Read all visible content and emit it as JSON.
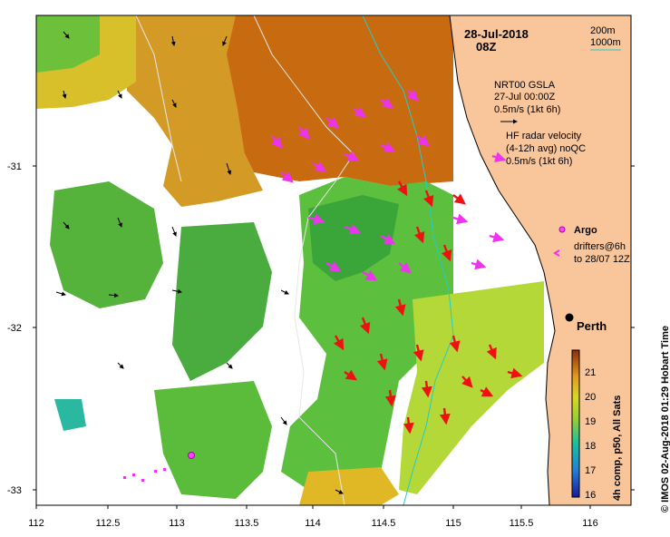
{
  "header": {
    "date": "28-Jul-2018",
    "time": "08Z"
  },
  "contour_legend": {
    "line1": "200m",
    "line2": "1000m"
  },
  "sla_legend": {
    "title": "NRT00 GSLA",
    "date": "27-Jul 00:00Z",
    "scale": "0.5m/s (1kt 6h)"
  },
  "radar_legend": {
    "title": "HF radar velocity",
    "avg": "(4-12h avg) noQC",
    "scale": "0.5m/s (1kt 6h)"
  },
  "argo_legend": {
    "label": "Argo"
  },
  "drifter_legend": {
    "line1": "drifters@6h",
    "line2": "to 28/07 12Z"
  },
  "city": {
    "name": "Perth"
  },
  "colorbar": {
    "ticks": [
      "21",
      "20",
      "19",
      "18",
      "17",
      "16"
    ],
    "label": "4h comp, p50, All Sats"
  },
  "credit": "© IMOS 02-Aug-2018 01:29 Hobart Time",
  "axes": {
    "y_ticks": [
      "-31",
      "-32",
      "-33"
    ],
    "x_ticks": [
      "112",
      "112.5",
      "113",
      "113.5",
      "114",
      "114.5",
      "115",
      "115.5",
      "116"
    ]
  },
  "colors": {
    "land": "#f9c59b",
    "sst_warm": "#c86a10",
    "sst_mid": "#d8b030",
    "sst_cool": "#5cc040",
    "radar_north": "#ee33ee",
    "radar_south": "#ee1111",
    "contour_200": "#22cccc",
    "contour_1000": "#dddddd"
  }
}
